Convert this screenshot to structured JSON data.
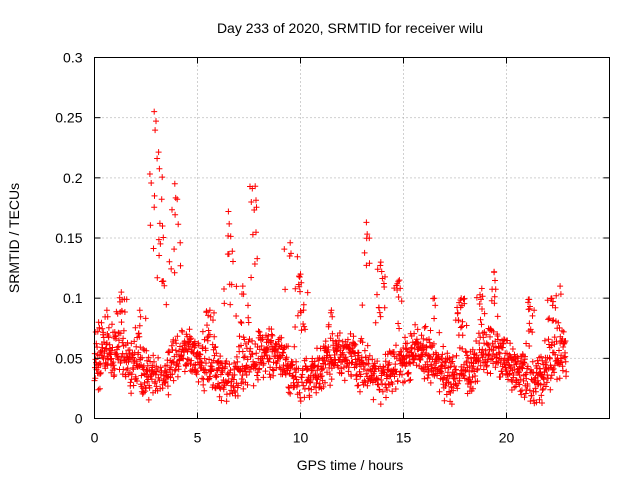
{
  "chart_data": {
    "type": "scatter",
    "title": "Day 233 of 2020, SRMTID for receiver wilu",
    "xlabel": "GPS time / hours",
    "ylabel": "SRMTID / TECUs",
    "xlim": [
      0,
      25
    ],
    "ylim": [
      0,
      0.3
    ],
    "x_ticks": [
      0,
      5,
      10,
      15,
      20
    ],
    "y_ticks": [
      0,
      0.05,
      0.1,
      0.15,
      0.2,
      0.25,
      0.3
    ],
    "x_tick_labels": [
      "0",
      "5",
      "10",
      "15",
      "20"
    ],
    "y_tick_labels": [
      "0",
      "0.05",
      "0.1",
      "0.15",
      "0.2",
      "0.25",
      "0.3"
    ],
    "grid": true,
    "marker": "plus",
    "color": "#ff0000",
    "x_data_range": [
      0,
      22.9
    ],
    "typical_range": [
      0.02,
      0.09
    ],
    "bursts": [
      {
        "x": 0.2,
        "peak": 0.08
      },
      {
        "x": 0.6,
        "peak": 0.09
      },
      {
        "x": 1.3,
        "peak": 0.105
      },
      {
        "x": 2.2,
        "peak": 0.09
      },
      {
        "x": 2.9,
        "peak": 0.255
      },
      {
        "x": 3.3,
        "peak": 0.16
      },
      {
        "x": 3.9,
        "peak": 0.195
      },
      {
        "x": 5.6,
        "peak": 0.09
      },
      {
        "x": 6.5,
        "peak": 0.172
      },
      {
        "x": 7.2,
        "peak": 0.11
      },
      {
        "x": 7.8,
        "peak": 0.193
      },
      {
        "x": 9.5,
        "peak": 0.146
      },
      {
        "x": 10.0,
        "peak": 0.12
      },
      {
        "x": 11.5,
        "peak": 0.09
      },
      {
        "x": 13.2,
        "peak": 0.163
      },
      {
        "x": 13.9,
        "peak": 0.13
      },
      {
        "x": 14.8,
        "peak": 0.115
      },
      {
        "x": 16.5,
        "peak": 0.1
      },
      {
        "x": 17.8,
        "peak": 0.1
      },
      {
        "x": 18.8,
        "peak": 0.108
      },
      {
        "x": 19.4,
        "peak": 0.122
      },
      {
        "x": 21.1,
        "peak": 0.099
      },
      {
        "x": 22.2,
        "peak": 0.1
      },
      {
        "x": 22.6,
        "peak": 0.11
      }
    ]
  }
}
